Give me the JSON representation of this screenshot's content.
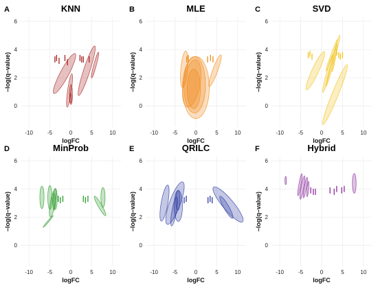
{
  "chart_data": [
    {
      "type": "scatter",
      "panel": "A",
      "title": "KNN",
      "xlabel": "logFC",
      "ylabel": "–log(q–value)",
      "xlim": [
        -12,
        12
      ],
      "ylim": [
        -1.5,
        6.3
      ],
      "xticks": [
        -10,
        -5,
        0,
        5,
        10
      ],
      "yticks": [
        0,
        2,
        4,
        6
      ],
      "grid": true,
      "color": "#a82020",
      "ellipses": [
        {
          "cx": 3.8,
          "cy": 2.5,
          "rx": 0.75,
          "ry": 1.85,
          "angle": 18
        },
        {
          "cx": 5.8,
          "cy": 2.9,
          "rx": 0.3,
          "ry": 0.95,
          "angle": 15
        },
        {
          "cx": -1.5,
          "cy": 2.3,
          "rx": 1.0,
          "ry": 1.6,
          "angle": 28
        },
        {
          "cx": -0.3,
          "cy": 1.1,
          "rx": 0.45,
          "ry": 1.2,
          "angle": 8
        },
        {
          "cx": 0.05,
          "cy": 0.8,
          "rx": 0.35,
          "ry": 0.7,
          "angle": 0
        },
        {
          "cx": -0.05,
          "cy": 0.55,
          "rx": 0.25,
          "ry": 0.35,
          "angle": 0
        }
      ],
      "bars": [
        {
          "x": -3.8,
          "y": 3.3
        },
        {
          "x": -3.4,
          "y": 3.4
        },
        {
          "x": -2.8,
          "y": 3.2
        },
        {
          "x": -1.4,
          "y": 3.4
        },
        {
          "x": -0.8,
          "y": 3.1
        },
        {
          "x": 2.2,
          "y": 3.4
        },
        {
          "x": 2.6,
          "y": 3.3
        },
        {
          "x": 3.0,
          "y": 3.3
        },
        {
          "x": 4.4,
          "y": 3.3
        }
      ]
    },
    {
      "type": "scatter",
      "panel": "B",
      "title": "MLE",
      "xlabel": "logFC",
      "ylabel": "–log(q–value)",
      "xlim": [
        -12,
        12
      ],
      "ylim": [
        -1.5,
        6.3
      ],
      "xticks": [
        -10,
        -5,
        0,
        5,
        10
      ],
      "yticks": [
        0,
        2,
        4,
        6
      ],
      "grid": true,
      "color": "#f08a1a",
      "ellipses": [
        {
          "cx": 0.0,
          "cy": 1.3,
          "rx": 3.2,
          "ry": 2.2,
          "angle": 0
        },
        {
          "cx": -0.3,
          "cy": 1.5,
          "rx": 2.6,
          "ry": 2.0,
          "angle": 0
        },
        {
          "cx": -1.0,
          "cy": 1.6,
          "rx": 2.0,
          "ry": 1.7,
          "angle": 10
        },
        {
          "cx": -0.5,
          "cy": 1.2,
          "rx": 1.6,
          "ry": 1.4,
          "angle": 0
        },
        {
          "cx": -2.8,
          "cy": 2.6,
          "rx": 0.8,
          "ry": 1.3,
          "angle": 5
        },
        {
          "cx": 4.6,
          "cy": 2.5,
          "rx": 0.6,
          "ry": 1.2,
          "angle": 20
        }
      ],
      "bars": [
        {
          "x": -2.2,
          "y": 3.3
        },
        {
          "x": -1.8,
          "y": 3.4
        },
        {
          "x": 2.8,
          "y": 3.3
        },
        {
          "x": 3.5,
          "y": 3.4
        },
        {
          "x": 4.1,
          "y": 3.3
        }
      ]
    },
    {
      "type": "scatter",
      "panel": "C",
      "title": "SVD",
      "xlabel": "logFC",
      "ylabel": "–log(q–value)",
      "xlim": [
        -12,
        12
      ],
      "ylim": [
        -1.5,
        6.3
      ],
      "xticks": [
        -10,
        -5,
        0,
        5,
        10
      ],
      "yticks": [
        0,
        2,
        4,
        6
      ],
      "grid": true,
      "color": "#f2c21b",
      "ellipses": [
        {
          "cx": 3.2,
          "cy": 0.8,
          "rx": 0.75,
          "ry": 2.3,
          "angle": 22
        },
        {
          "cx": -1.5,
          "cy": 2.5,
          "rx": 0.8,
          "ry": 1.5,
          "angle": 25
        },
        {
          "cx": 1.5,
          "cy": 2.3,
          "rx": 0.35,
          "ry": 1.4,
          "angle": 15
        },
        {
          "cx": 2.7,
          "cy": 3.2,
          "rx": 0.3,
          "ry": 1.9,
          "angle": 15
        },
        {
          "cx": 2.4,
          "cy": 3.6,
          "rx": 0.22,
          "ry": 1.2,
          "angle": 20
        },
        {
          "cx": 3.1,
          "cy": 3.4,
          "rx": 0.2,
          "ry": 1.0,
          "angle": 10
        }
      ],
      "bars": [
        {
          "x": -3.2,
          "y": 3.6
        },
        {
          "x": -2.8,
          "y": 3.7
        },
        {
          "x": -2.3,
          "y": 3.5
        },
        {
          "x": 3.6,
          "y": 3.8
        },
        {
          "x": 4.1,
          "y": 3.6
        },
        {
          "x": 4.5,
          "y": 3.5
        },
        {
          "x": 5.0,
          "y": 3.6
        }
      ]
    },
    {
      "type": "scatter",
      "panel": "D",
      "title": "MinProb",
      "xlabel": "logFC",
      "ylabel": "–log(q–value)",
      "xlim": [
        -12,
        12
      ],
      "ylim": [
        -1.5,
        6.3
      ],
      "xticks": [
        -10,
        -5,
        0,
        5,
        10
      ],
      "yticks": [
        0,
        2,
        4,
        6
      ],
      "grid": true,
      "color": "#2a9a2a",
      "ellipses": [
        {
          "cx": -6.9,
          "cy": 3.4,
          "rx": 0.5,
          "ry": 0.8,
          "angle": 0
        },
        {
          "cx": -5.0,
          "cy": 3.4,
          "rx": 0.5,
          "ry": 0.85,
          "angle": 0
        },
        {
          "cx": -4.3,
          "cy": 3.0,
          "rx": 0.6,
          "ry": 1.0,
          "angle": 10
        },
        {
          "cx": -3.7,
          "cy": 3.3,
          "rx": 0.45,
          "ry": 0.75,
          "angle": 0
        },
        {
          "cx": -4.0,
          "cy": 3.1,
          "rx": 0.35,
          "ry": 0.6,
          "angle": 0
        },
        {
          "cx": 7.7,
          "cy": 3.4,
          "rx": 0.5,
          "ry": 0.7,
          "angle": 0
        },
        {
          "cx": 7.0,
          "cy": 2.8,
          "rx": 0.45,
          "ry": 0.8,
          "angle": -30
        },
        {
          "cx": -5.4,
          "cy": 1.7,
          "rx": 0.15,
          "ry": 0.55,
          "angle": 40
        }
      ],
      "bars": [
        {
          "x": -3.0,
          "y": 3.3
        },
        {
          "x": -2.5,
          "y": 3.2
        },
        {
          "x": -1.9,
          "y": 3.3
        },
        {
          "x": 3.0,
          "y": 3.3
        },
        {
          "x": 3.5,
          "y": 3.2
        },
        {
          "x": 4.1,
          "y": 3.3
        }
      ]
    },
    {
      "type": "scatter",
      "panel": "E",
      "title": "QRILC",
      "xlabel": "logFC",
      "ylabel": "–log(q–value)",
      "xlim": [
        -12,
        12
      ],
      "ylim": [
        -1.5,
        6.3
      ],
      "xticks": [
        -10,
        -5,
        0,
        5,
        10
      ],
      "yticks": [
        0,
        2,
        4,
        6
      ],
      "grid": true,
      "color": "#2b3aa0",
      "ellipses": [
        {
          "cx": -7.5,
          "cy": 3.0,
          "rx": 0.8,
          "ry": 1.3,
          "angle": 10
        },
        {
          "cx": -5.0,
          "cy": 3.0,
          "rx": 1.3,
          "ry": 1.6,
          "angle": 20
        },
        {
          "cx": -4.2,
          "cy": 2.8,
          "rx": 1.0,
          "ry": 1.1,
          "angle": 0
        },
        {
          "cx": -5.2,
          "cy": 2.4,
          "rx": 0.55,
          "ry": 1.05,
          "angle": 10
        },
        {
          "cx": -4.3,
          "cy": 3.2,
          "rx": 0.5,
          "ry": 0.7,
          "angle": 0
        },
        {
          "cx": 7.7,
          "cy": 2.9,
          "rx": 1.3,
          "ry": 1.6,
          "angle": -40
        },
        {
          "cx": 7.3,
          "cy": 2.7,
          "rx": 0.6,
          "ry": 0.9,
          "angle": -30
        }
      ],
      "bars": [
        {
          "x": -2.8,
          "y": 3.2
        },
        {
          "x": -2.3,
          "y": 3.3
        },
        {
          "x": 2.9,
          "y": 3.2
        },
        {
          "x": 3.4,
          "y": 3.3
        },
        {
          "x": 3.9,
          "y": 3.2
        }
      ]
    },
    {
      "type": "scatter",
      "panel": "F",
      "title": "Hybrid",
      "xlabel": "logFC",
      "ylabel": "–log(q–value)",
      "xlim": [
        -12,
        12
      ],
      "ylim": [
        -1.5,
        6.3
      ],
      "xticks": [
        -10,
        -5,
        0,
        5,
        10
      ],
      "yticks": [
        0,
        2,
        4,
        6
      ],
      "grid": true,
      "color": "#8a2a9a",
      "ellipses": [
        {
          "cx": -8.6,
          "cy": 4.6,
          "rx": 0.18,
          "ry": 0.3,
          "angle": 0
        },
        {
          "cx": -5.2,
          "cy": 4.3,
          "rx": 0.25,
          "ry": 0.8,
          "angle": 10
        },
        {
          "cx": -4.6,
          "cy": 4.1,
          "rx": 0.3,
          "ry": 0.85,
          "angle": 10
        },
        {
          "cx": -3.9,
          "cy": 4.1,
          "rx": 0.25,
          "ry": 0.75,
          "angle": 10
        },
        {
          "cx": -3.3,
          "cy": 4.0,
          "rx": 0.2,
          "ry": 0.55,
          "angle": 5
        },
        {
          "cx": 7.8,
          "cy": 4.4,
          "rx": 0.45,
          "ry": 0.7,
          "angle": 0
        }
      ],
      "bars": [
        {
          "x": -2.6,
          "y": 3.9
        },
        {
          "x": -2.0,
          "y": 3.8
        },
        {
          "x": -1.5,
          "y": 3.8
        },
        {
          "x": 2.0,
          "y": 3.9
        },
        {
          "x": 3.0,
          "y": 3.8
        },
        {
          "x": 3.6,
          "y": 4.0
        },
        {
          "x": 4.8,
          "y": 3.9
        },
        {
          "x": 5.4,
          "y": 4.0
        }
      ]
    }
  ]
}
